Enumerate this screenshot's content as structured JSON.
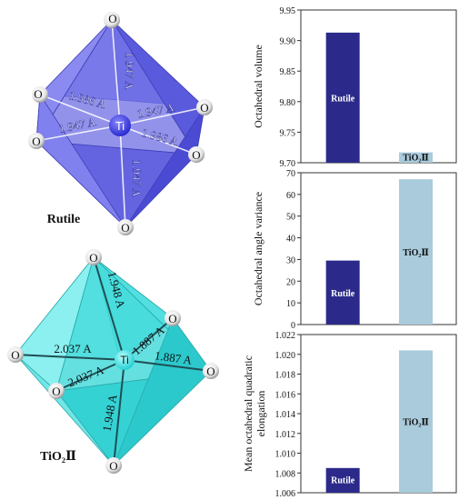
{
  "structures": [
    {
      "name": "Rutile",
      "center_label": "Ti",
      "atom_label": "O",
      "bond_labels": [
        "1.947 A",
        "1.986 A",
        "1.947 A",
        "1.947 A",
        "1.986 A",
        "1.947 A"
      ],
      "colors": {
        "face_light": "#8e8ef2",
        "face_mid": "#6b6be8",
        "face_dark": "#4444cc",
        "edge": "#3d3db5",
        "center": "#3b3bdd"
      }
    },
    {
      "name": "TiO₂Ⅱ",
      "center_label": "Ti",
      "atom_label": "O",
      "bond_labels": [
        "1.948 A",
        "1.887 A",
        "2.037 A",
        "2.037 A",
        "1.887 A",
        "1.948 A"
      ],
      "colors": {
        "face_light": "#8ff0f0",
        "face_mid": "#4fe3e3",
        "face_dark": "#2ecfd2",
        "edge": "#1a8a8a",
        "center": "#3ce0e0"
      }
    }
  ],
  "chart_data": [
    {
      "type": "bar",
      "categories": [
        "Rutile",
        "TiO₂Ⅱ"
      ],
      "values": [
        9.913,
        9.717
      ],
      "ylabel": "Octahedral volume",
      "ylim": [
        9.7,
        9.95
      ],
      "ticks": [
        "9.70",
        "9.75",
        "9.80",
        "9.85",
        "9.90",
        "9.95"
      ],
      "bar_labels": [
        "Rutile",
        "TiO₂Ⅱ"
      ],
      "colors": [
        "#2b2a8a",
        "#a9cbdc"
      ]
    },
    {
      "type": "bar",
      "categories": [
        "Rutile",
        "TiO₂Ⅱ"
      ],
      "values": [
        29.5,
        67.0
      ],
      "ylabel": "Octahedral angle variance",
      "ylim": [
        0,
        70
      ],
      "ticks": [
        "0",
        "10",
        "20",
        "30",
        "40",
        "50",
        "60",
        "70"
      ],
      "bar_labels": [
        "Rutile",
        "TiO₂Ⅱ"
      ],
      "colors": [
        "#2b2a8a",
        "#a9cbdc"
      ]
    },
    {
      "type": "bar",
      "categories": [
        "Rutile",
        "TiO₂Ⅱ"
      ],
      "values": [
        1.0085,
        1.0204
      ],
      "ylabel": "Mean octahedral quadratic elongation",
      "ylabel_lines": [
        "Mean octahedral quadratic",
        "elongation"
      ],
      "ylim": [
        1.006,
        1.022
      ],
      "ticks": [
        "1.006",
        "1.008",
        "1.010",
        "1.012",
        "1.014",
        "1.016",
        "1.018",
        "1.020",
        "1.022"
      ],
      "bar_labels": [
        "Rutile",
        "TiO₂Ⅱ"
      ],
      "colors": [
        "#2b2a8a",
        "#a9cbdc"
      ]
    }
  ]
}
